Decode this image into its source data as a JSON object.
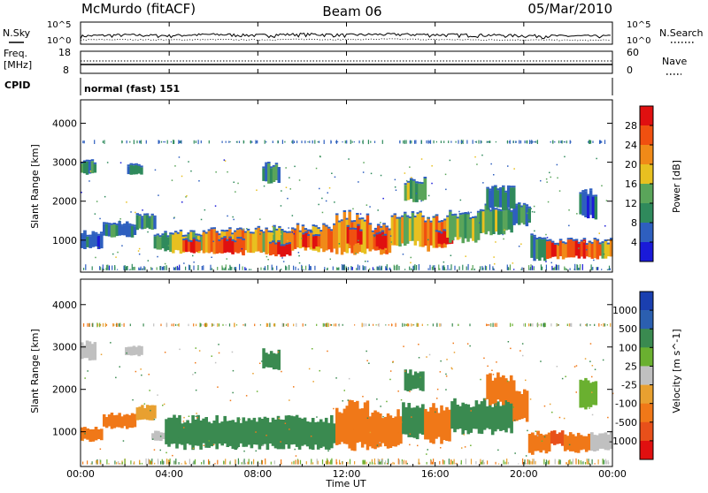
{
  "header": {
    "station": "McMurdo (fitACF)",
    "beam": "Beam 06",
    "date": "05/Mar/2010"
  },
  "noise_panel": {
    "left_label": "N.Sky",
    "right_label": "N.Search",
    "y_ticks": [
      "10^5",
      "10^0"
    ]
  },
  "freq_panel": {
    "left_label_1": "Freq.",
    "left_label_2": "[MHz]",
    "left_ticks": [
      "18",
      "8"
    ],
    "right_label": "Nave",
    "right_ticks": [
      "60",
      "0"
    ]
  },
  "cpid_panel": {
    "label": "CPID",
    "mode": "normal (fast) 151"
  },
  "power_panel": {
    "ylabel": "Slant Range [km]",
    "y_ticks": [
      "4000",
      "3000",
      "2000",
      "1000"
    ],
    "colorbar_title": "Power [dB]",
    "colorbar_ticks": [
      "28",
      "24",
      "20",
      "16",
      "12",
      "8",
      "4"
    ]
  },
  "velocity_panel": {
    "ylabel": "Slant Range [km]",
    "y_ticks": [
      "4000",
      "3000",
      "2000",
      "1000"
    ],
    "colorbar_title": "Velocity [m s^-1]",
    "colorbar_ticks": [
      "1000",
      "500",
      "100",
      "25",
      "-25",
      "-100",
      "-500",
      "-1000"
    ]
  },
  "x_axis": {
    "ticks": [
      "00:00",
      "04:00",
      "08:00",
      "12:00",
      "16:00",
      "20:00",
      "00:00"
    ],
    "label": "Time UT"
  },
  "colors": {
    "power_scale": [
      "#1a1ad8",
      "#2e5fbf",
      "#2f8a5c",
      "#5aa55a",
      "#e8c020",
      "#f08a18",
      "#f05010",
      "#e01010"
    ],
    "velocity_scale": [
      "#e01010",
      "#e8501a",
      "#f07818",
      "#e8a030",
      "#c0c0c0",
      "#6ab030",
      "#3a8a50",
      "#2b5fb0",
      "#1a3fb0"
    ]
  },
  "chart_data": [
    {
      "type": "line",
      "title": "N.Sky / N.Search",
      "x_range_hours": [
        0,
        24
      ],
      "y_scale": "log",
      "ylim": [
        1,
        100000
      ],
      "series": [
        {
          "name": "N.Sky",
          "x": [
            0,
            2,
            4,
            6,
            8,
            10,
            12,
            14,
            16,
            18,
            20,
            22,
            24
          ],
          "values": [
            30,
            60,
            40,
            80,
            50,
            100,
            60,
            90,
            70,
            60,
            40,
            30,
            30
          ]
        },
        {
          "name": "N.Search",
          "x": [
            0,
            2,
            4,
            6,
            8,
            10,
            12,
            14,
            16,
            18,
            20,
            22,
            24
          ],
          "values": [
            5,
            6,
            5,
            6,
            5,
            7,
            6,
            8,
            6,
            5,
            5,
            4,
            4
          ]
        }
      ]
    },
    {
      "type": "line",
      "title": "Freq. / Nave",
      "x_range_hours": [
        0,
        24
      ],
      "series": [
        {
          "name": "Freq.",
          "x": [
            0,
            24
          ],
          "values": [
            11,
            11
          ]
        },
        {
          "name": "Nave",
          "x": [
            0,
            24
          ],
          "values": [
            30,
            30
          ]
        }
      ]
    },
    {
      "type": "heatmap",
      "title": "Power [dB]",
      "xlabel": "Time UT",
      "ylabel": "Slant Range [km]",
      "x_range_hours": [
        0,
        24
      ],
      "ylim": [
        180,
        4600
      ],
      "clim": [
        0,
        30
      ],
      "cells": [
        {
          "t0": 0.0,
          "t1": 1.0,
          "r0": 800,
          "r1": 1150,
          "v": 6
        },
        {
          "t0": 1.0,
          "t1": 2.5,
          "r0": 1100,
          "r1": 1400,
          "v": 8
        },
        {
          "t0": 2.5,
          "t1": 3.4,
          "r0": 1300,
          "r1": 1600,
          "v": 10
        },
        {
          "t0": 3.3,
          "t1": 4.0,
          "r0": 750,
          "r1": 1150,
          "v": 12
        },
        {
          "t0": 4.0,
          "t1": 5.5,
          "r0": 700,
          "r1": 1150,
          "v": 16
        },
        {
          "t0": 4.6,
          "t1": 5.4,
          "r0": 700,
          "r1": 1000,
          "v": 24
        },
        {
          "t0": 5.5,
          "t1": 7.5,
          "r0": 700,
          "r1": 1200,
          "v": 20
        },
        {
          "t0": 6.2,
          "t1": 7.4,
          "r0": 650,
          "r1": 1000,
          "v": 26
        },
        {
          "t0": 7.5,
          "t1": 9.5,
          "r0": 700,
          "r1": 1250,
          "v": 18
        },
        {
          "t0": 8.5,
          "t1": 9.5,
          "r0": 600,
          "r1": 900,
          "v": 28
        },
        {
          "t0": 9.5,
          "t1": 11.5,
          "r0": 750,
          "r1": 1300,
          "v": 20
        },
        {
          "t0": 10.0,
          "t1": 10.8,
          "r0": 800,
          "r1": 1150,
          "v": 26
        },
        {
          "t0": 11.5,
          "t1": 13.0,
          "r0": 700,
          "r1": 1600,
          "v": 20
        },
        {
          "t0": 12.0,
          "t1": 12.7,
          "r0": 900,
          "r1": 1300,
          "v": 27
        },
        {
          "t0": 13.0,
          "t1": 14.0,
          "r0": 700,
          "r1": 1300,
          "v": 22
        },
        {
          "t0": 13.2,
          "t1": 13.8,
          "r0": 800,
          "r1": 1150,
          "v": 28
        },
        {
          "t0": 14.0,
          "t1": 15.5,
          "r0": 900,
          "r1": 1600,
          "v": 16
        },
        {
          "t0": 15.5,
          "t1": 16.5,
          "r0": 800,
          "r1": 1550,
          "v": 22
        },
        {
          "t0": 16.0,
          "t1": 16.8,
          "r0": 900,
          "r1": 1200,
          "v": 28
        },
        {
          "t0": 16.5,
          "t1": 18.0,
          "r0": 1000,
          "r1": 1650,
          "v": 14
        },
        {
          "t0": 18.0,
          "t1": 19.5,
          "r0": 1200,
          "r1": 1800,
          "v": 12
        },
        {
          "t0": 19.5,
          "t1": 20.3,
          "r0": 1400,
          "r1": 1900,
          "v": 8
        },
        {
          "t0": 20.3,
          "t1": 21.0,
          "r0": 500,
          "r1": 1100,
          "v": 10
        },
        {
          "t0": 21.0,
          "t1": 23.5,
          "r0": 550,
          "r1": 950,
          "v": 24
        },
        {
          "t0": 23.5,
          "t1": 24.0,
          "r0": 550,
          "r1": 950,
          "v": 18
        },
        {
          "t0": 0.0,
          "t1": 0.7,
          "r0": 2700,
          "r1": 3000,
          "v": 10
        },
        {
          "t0": 2.1,
          "t1": 2.8,
          "r0": 2700,
          "r1": 2900,
          "v": 6
        },
        {
          "t0": 8.2,
          "t1": 9.0,
          "r0": 2500,
          "r1": 2900,
          "v": 10
        },
        {
          "t0": 14.6,
          "t1": 15.6,
          "r0": 2000,
          "r1": 2500,
          "v": 14
        },
        {
          "t0": 18.3,
          "t1": 19.6,
          "r0": 1800,
          "r1": 2300,
          "v": 8
        },
        {
          "t0": 22.5,
          "t1": 23.3,
          "r0": 1600,
          "r1": 2200,
          "v": 6
        }
      ]
    },
    {
      "type": "heatmap",
      "title": "Velocity [m s^-1]",
      "xlabel": "Time UT",
      "ylabel": "Slant Range [km]",
      "x_range_hours": [
        0,
        24
      ],
      "ylim": [
        180,
        4600
      ],
      "clim": [
        -1000,
        1000
      ],
      "cells": [
        {
          "t0": 0.0,
          "t1": 1.0,
          "r0": 800,
          "r1": 1100,
          "v": -110
        },
        {
          "t0": 1.0,
          "t1": 2.5,
          "r0": 1100,
          "r1": 1400,
          "v": -150
        },
        {
          "t0": 2.5,
          "t1": 3.4,
          "r0": 1300,
          "r1": 1600,
          "v": -90
        },
        {
          "t0": 3.2,
          "t1": 3.8,
          "r0": 800,
          "r1": 1000,
          "v": 0
        },
        {
          "t0": 3.8,
          "t1": 11.5,
          "r0": 650,
          "r1": 1300,
          "v": 300
        },
        {
          "t0": 11.5,
          "t1": 13.0,
          "r0": 650,
          "r1": 1600,
          "v": -150
        },
        {
          "t0": 13.0,
          "t1": 14.5,
          "r0": 650,
          "r1": 1400,
          "v": -130
        },
        {
          "t0": 14.5,
          "t1": 15.5,
          "r0": 900,
          "r1": 1600,
          "v": 250
        },
        {
          "t0": 15.5,
          "t1": 16.7,
          "r0": 800,
          "r1": 1550,
          "v": -160
        },
        {
          "t0": 16.7,
          "t1": 19.5,
          "r0": 1000,
          "r1": 1700,
          "v": 150
        },
        {
          "t0": 19.5,
          "t1": 20.2,
          "r0": 1300,
          "r1": 1900,
          "v": -110
        },
        {
          "t0": 20.2,
          "t1": 21.2,
          "r0": 500,
          "r1": 1000,
          "v": -450
        },
        {
          "t0": 21.2,
          "t1": 21.8,
          "r0": 700,
          "r1": 1000,
          "v": -1000
        },
        {
          "t0": 21.8,
          "t1": 23.0,
          "r0": 550,
          "r1": 950,
          "v": -130
        },
        {
          "t0": 23.0,
          "t1": 24.0,
          "r0": 550,
          "r1": 950,
          "v": 0
        },
        {
          "t0": 0.0,
          "t1": 0.7,
          "r0": 2700,
          "r1": 3100,
          "v": 0
        },
        {
          "t0": 2.0,
          "t1": 2.8,
          "r0": 2800,
          "r1": 3000,
          "v": 0
        },
        {
          "t0": 8.2,
          "t1": 9.0,
          "r0": 2500,
          "r1": 2900,
          "v": 200
        },
        {
          "t0": 14.6,
          "t1": 15.5,
          "r0": 2000,
          "r1": 2400,
          "v": 100
        },
        {
          "t0": 18.3,
          "t1": 19.6,
          "r0": 1700,
          "r1": 2300,
          "v": -120
        },
        {
          "t0": 22.5,
          "t1": 23.3,
          "r0": 1600,
          "r1": 2200,
          "v": 60
        }
      ]
    }
  ]
}
